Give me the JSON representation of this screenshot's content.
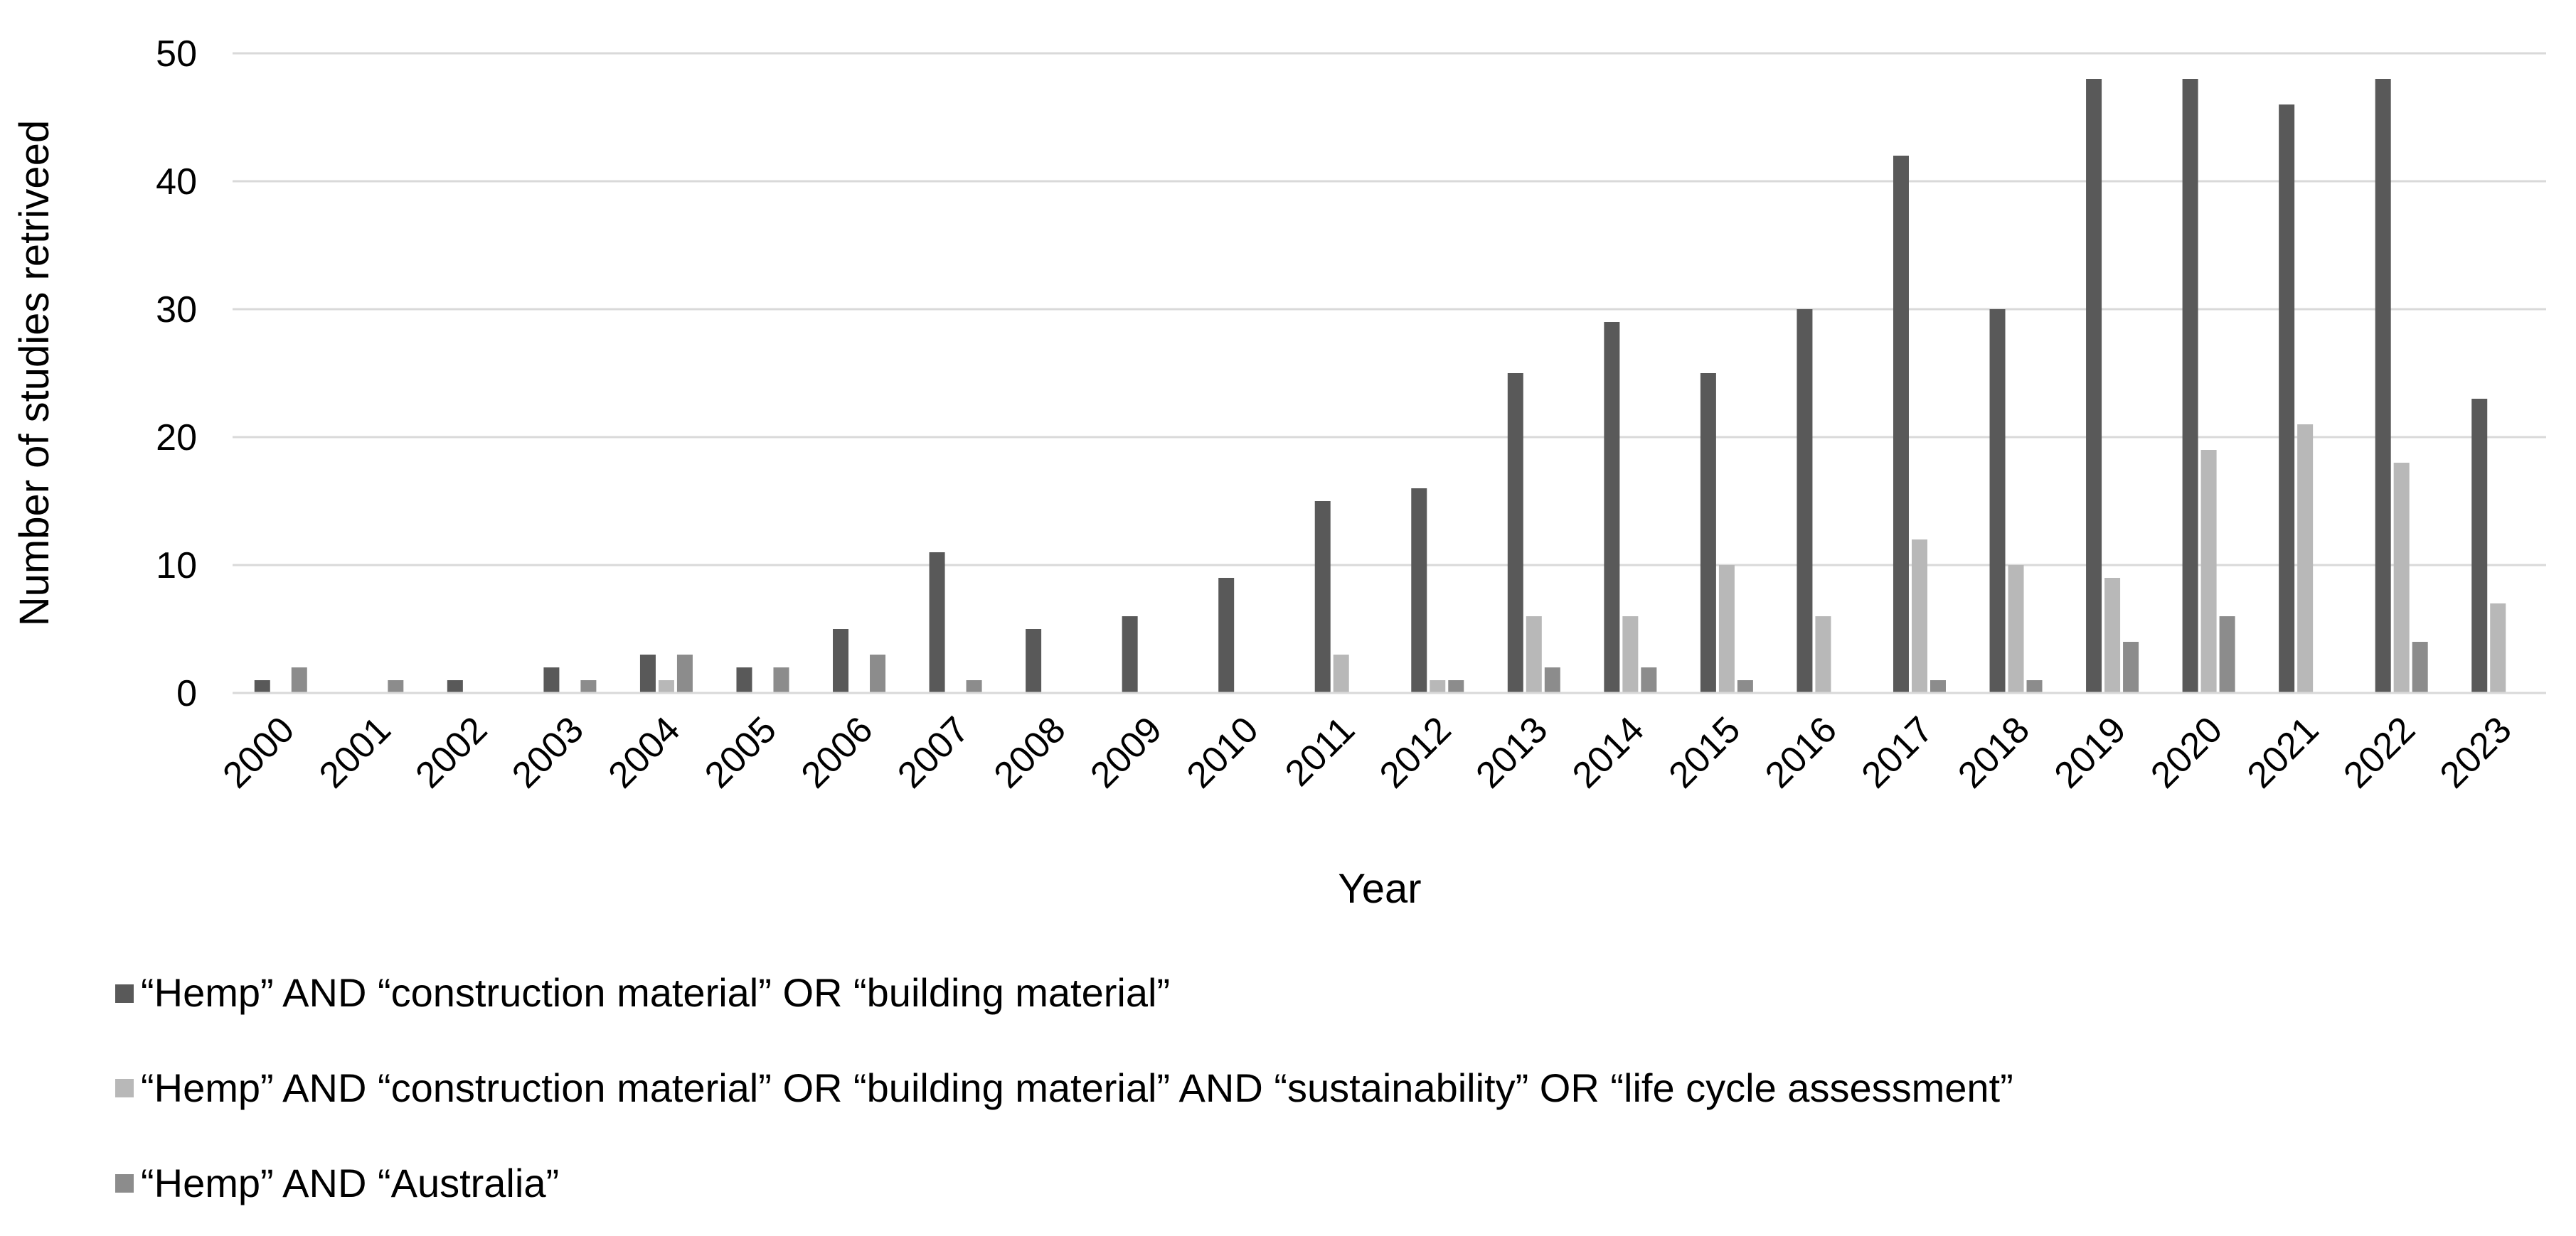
{
  "chart_data": {
    "type": "bar",
    "title": "",
    "xlabel": "Year",
    "ylabel": "Number of studies retriveed",
    "ylim": [
      0,
      50
    ],
    "yticks": [
      0,
      10,
      20,
      30,
      40,
      50
    ],
    "grid": true,
    "legend_position": "bottom",
    "categories": [
      "2000",
      "2001",
      "2002",
      "2003",
      "2004",
      "2005",
      "2006",
      "2007",
      "2008",
      "2009",
      "2010",
      "2011",
      "2012",
      "2013",
      "2014",
      "2015",
      "2016",
      "2017",
      "2018",
      "2019",
      "2020",
      "2021",
      "2022",
      "2023"
    ],
    "series": [
      {
        "name": "“Hemp” AND “construction material” OR “building material”",
        "color": "#595959",
        "values": [
          1,
          0,
          1,
          2,
          3,
          2,
          5,
          11,
          5,
          6,
          9,
          15,
          16,
          25,
          29,
          25,
          30,
          42,
          30,
          48,
          48,
          46,
          48,
          23
        ]
      },
      {
        "name": "“Hemp” AND “construction material” OR “building material” AND “sustainability” OR “life cycle assessment”",
        "color": "#b8b8b8",
        "values": [
          0,
          0,
          0,
          0,
          1,
          0,
          0,
          0,
          0,
          0,
          0,
          3,
          1,
          6,
          6,
          10,
          6,
          12,
          10,
          9,
          19,
          21,
          18,
          7
        ]
      },
      {
        "name": "“Hemp” AND “Australia”",
        "color": "#8c8c8c",
        "values": [
          2,
          1,
          0,
          1,
          3,
          2,
          3,
          1,
          0,
          0,
          0,
          0,
          1,
          2,
          2,
          1,
          0,
          1,
          1,
          4,
          6,
          0,
          4,
          0
        ]
      }
    ]
  }
}
